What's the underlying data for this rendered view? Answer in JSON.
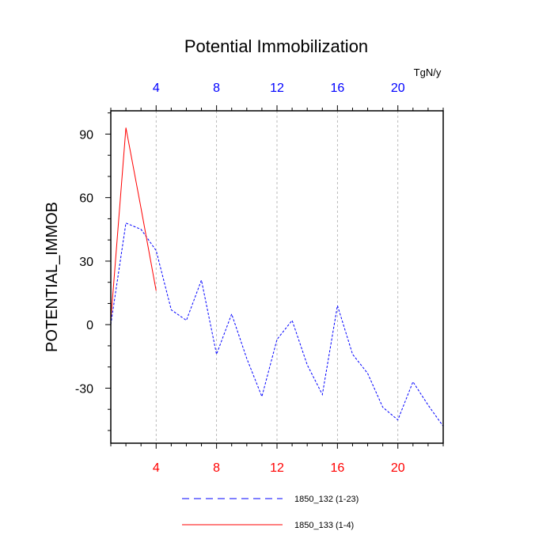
{
  "chart_data": {
    "type": "line",
    "title": "Potential Immobilization",
    "ylabel": "POTENTIAL_IMMOB",
    "top_axis_unit": "TgN/y",
    "xlim": [
      1,
      23
    ],
    "ylim": [
      -56,
      101
    ],
    "x_ticks": [
      4,
      8,
      12,
      16,
      20
    ],
    "y_ticks": [
      90,
      60,
      30,
      0,
      -30
    ],
    "grid": "vertical-dashed",
    "legend_position": "bottom",
    "colors": {
      "top_axis_labels": "#0000ff",
      "bottom_axis_labels": "#ff0000"
    },
    "series": [
      {
        "name": "1850_132 (1-23)",
        "style": "dashed",
        "color": "#0000ff",
        "x": [
          1,
          2,
          3,
          4,
          5,
          6,
          7,
          8,
          9,
          10,
          11,
          12,
          13,
          14,
          15,
          16,
          17,
          18,
          19,
          20,
          21,
          22,
          23
        ],
        "values": [
          0,
          48,
          45,
          35,
          7,
          2,
          21,
          -14,
          5,
          -16,
          -34,
          -7,
          2,
          -19,
          -33,
          9,
          -14,
          -23,
          -39,
          -45,
          -27,
          -38,
          -48
        ]
      },
      {
        "name": "1850_133 (1-4)",
        "style": "solid",
        "color": "#ff0000",
        "x": [
          1,
          2,
          3,
          4
        ],
        "values": [
          2,
          93,
          55,
          16
        ]
      }
    ]
  }
}
